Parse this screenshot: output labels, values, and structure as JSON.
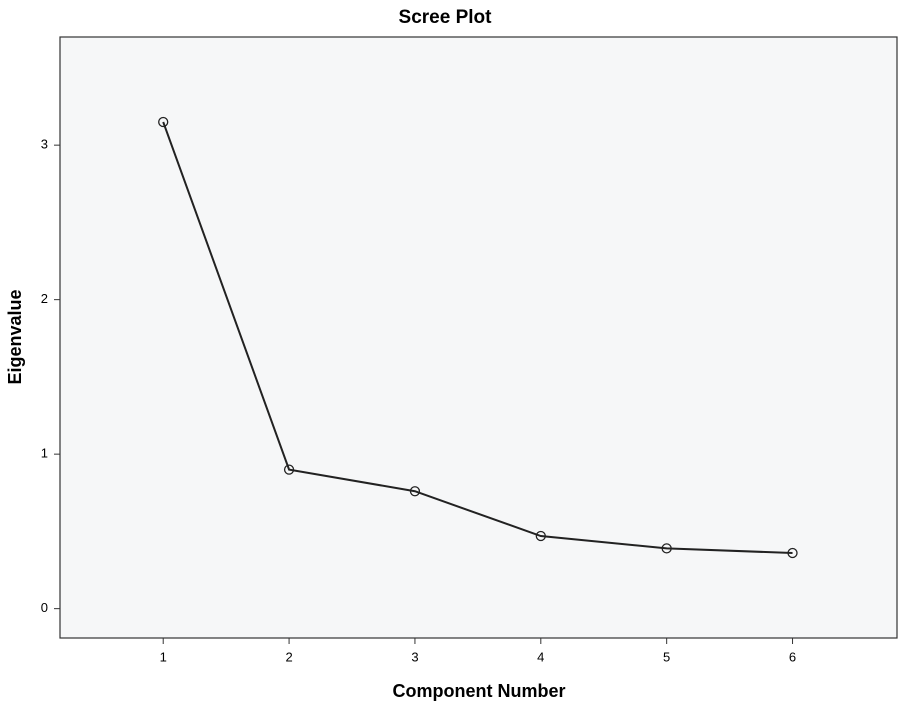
{
  "chart_data": {
    "type": "line",
    "title": "Scree Plot",
    "x_label": "Component Number",
    "y_label": "Eigenvalue",
    "x": [
      1,
      2,
      3,
      4,
      5,
      6
    ],
    "series": [
      {
        "name": "Eigenvalue",
        "color": "#222222",
        "values": [
          3.15,
          0.9,
          0.76,
          0.47,
          0.39,
          0.36
        ]
      }
    ],
    "xlim": [
      0.18,
      6.83
    ],
    "xticks": [
      1,
      2,
      3,
      4,
      5,
      6
    ],
    "ylim": [
      -0.19,
      3.7
    ],
    "yticks": [
      0,
      1,
      2,
      3
    ],
    "grid": false,
    "background": "#f6f7f8",
    "markers": true
  }
}
